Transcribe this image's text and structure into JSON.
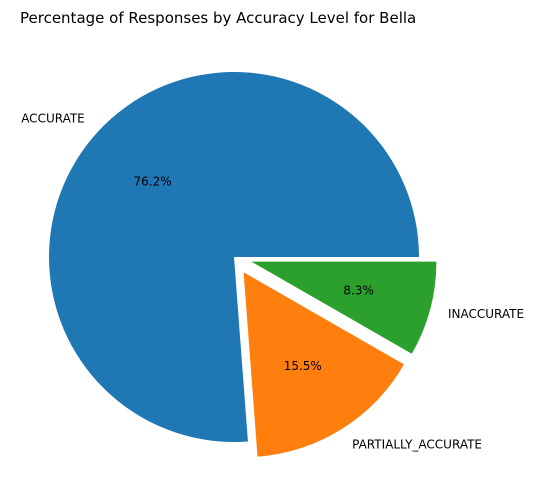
{
  "chart_data": {
    "type": "pie",
    "title": "Percentage of Responses by Accuracy Level for Bella",
    "slices": [
      {
        "label": "ACCURATE",
        "value": 76.2,
        "pct_label": "76.2%",
        "color": "#1f77b4",
        "exploded": false
      },
      {
        "label": "PARTIALLY_ACCURATE",
        "value": 15.5,
        "pct_label": "15.5%",
        "color": "#ff7f0e",
        "exploded": true
      },
      {
        "label": "INACCURATE",
        "value": 8.3,
        "pct_label": "8.3%",
        "color": "#2ca02c",
        "exploded": true
      }
    ],
    "start_angle_deg": 0,
    "direction": "counterclockwise",
    "legend": "none"
  }
}
